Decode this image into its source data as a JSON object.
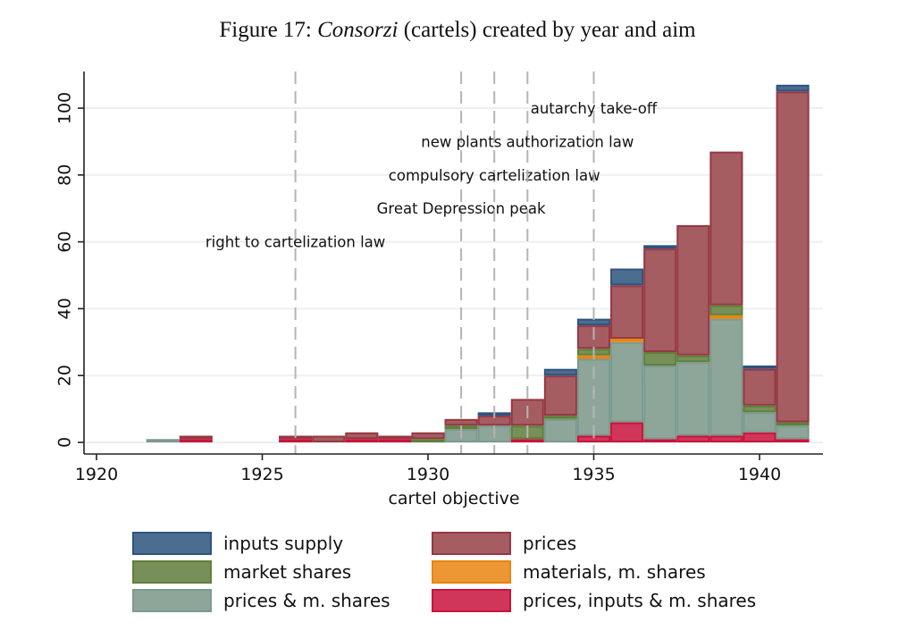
{
  "figure": {
    "title_prefix": "Figure 17: ",
    "title_italic": "Consorzi",
    "title_suffix": " (cartels) created by year and aim"
  },
  "chart_data": {
    "type": "bar",
    "stacked": true,
    "title": "Figure 17: Consorzi (cartels) created by year and aim",
    "xlabel": "cartel objective",
    "ylabel": "",
    "xlim": [
      1919.8,
      1942.2
    ],
    "ylim": [
      -3,
      110
    ],
    "xticks": [
      1920,
      1925,
      1930,
      1935,
      1940
    ],
    "yticks": [
      0,
      20,
      40,
      60,
      80,
      100
    ],
    "grid": "horizontal",
    "legend_position": "bottom",
    "categories": [
      1922,
      1923,
      1926,
      1927,
      1928,
      1929,
      1930,
      1931,
      1932,
      1933,
      1934,
      1935,
      1936,
      1937,
      1938,
      1939,
      1940,
      1941
    ],
    "series": [
      {
        "name": "prices, inputs & m. shares",
        "color": "#d0365a",
        "edge": "#c8143c",
        "values": [
          0,
          1,
          1,
          0,
          1,
          1,
          0,
          0,
          0,
          1,
          0,
          2,
          6,
          1,
          2,
          2,
          3,
          1
        ]
      },
      {
        "name": "prices & m. shares",
        "color": "#8ea69a",
        "edge": "#7c9a8f",
        "values": [
          1,
          0,
          0,
          0,
          0,
          0,
          0,
          4,
          5,
          0,
          7,
          23,
          24,
          22,
          22,
          35,
          6,
          4
        ]
      },
      {
        "name": "materials, m. shares",
        "color": "#ec9733",
        "edge": "#e8850f",
        "values": [
          0,
          0,
          0,
          0,
          0,
          0,
          0,
          0,
          0,
          0,
          0,
          1,
          1,
          0,
          0,
          1,
          0,
          0
        ]
      },
      {
        "name": "market shares",
        "color": "#77905a",
        "edge": "#5f8038",
        "values": [
          0,
          0,
          0,
          0,
          0,
          0,
          1,
          1,
          0,
          4,
          1,
          2,
          0,
          4,
          2,
          3,
          2,
          1
        ]
      },
      {
        "name": "prices",
        "color": "#a55d62",
        "edge": "#953843",
        "values": [
          0,
          1,
          1,
          2,
          2,
          1,
          2,
          2,
          3,
          8,
          12,
          7,
          16,
          31,
          39,
          46,
          11,
          99
        ]
      },
      {
        "name": "inputs supply",
        "color": "#4b6d8f",
        "edge": "#2e5480",
        "values": [
          0,
          0,
          0,
          0,
          0,
          0,
          0,
          0,
          1,
          0,
          2,
          2,
          5,
          1,
          0,
          0,
          1,
          2
        ]
      }
    ],
    "totals": [
      1,
      2,
      2,
      2,
      3,
      2,
      3,
      7,
      9,
      13,
      22,
      37,
      52,
      59,
      65,
      87,
      23,
      107
    ],
    "reference_lines": [
      {
        "x": 1926,
        "label": "right to cartelization law",
        "label_y": 60
      },
      {
        "x": 1931,
        "label": "Great Depression peak",
        "label_y": 70
      },
      {
        "x": 1932,
        "label": "compulsory cartelization law",
        "label_y": 80
      },
      {
        "x": 1933,
        "label": "new plants authorization law",
        "label_y": 90
      },
      {
        "x": 1935,
        "label": "autarchy take-off",
        "label_y": 100
      }
    ],
    "legend": [
      {
        "name": "inputs supply",
        "color": "#4b6d8f",
        "edge": "#2e5480"
      },
      {
        "name": "prices",
        "color": "#a55d62",
        "edge": "#953843"
      },
      {
        "name": "market shares",
        "color": "#77905a",
        "edge": "#5f8038"
      },
      {
        "name": "materials, m. shares",
        "color": "#ec9733",
        "edge": "#e8850f"
      },
      {
        "name": "prices & m. shares",
        "color": "#8ea69a",
        "edge": "#7c9a8f"
      },
      {
        "name": "prices, inputs & m. shares",
        "color": "#d0365a",
        "edge": "#c8143c"
      }
    ]
  }
}
